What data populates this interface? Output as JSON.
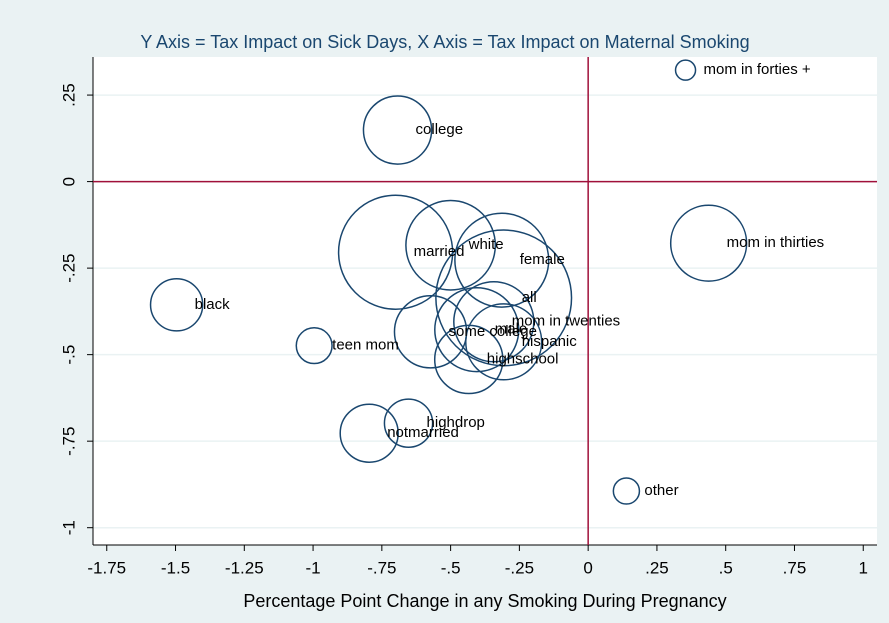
{
  "chart_data": {
    "type": "bubble",
    "title": "Y Axis = Tax Impact on Sick Days, X Axis = Tax Impact on Maternal Smoking",
    "xlabel": "Percentage Point Change in any Smoking During Pregnancy",
    "labels": [
      "mom in forties +",
      "college",
      "married",
      "white",
      "female",
      "mom in thirties",
      "black",
      "all",
      "mom in twenties",
      "some college",
      "male",
      "hispanic",
      "highschool",
      "teen mom",
      "highdrop",
      "notmarried",
      "other"
    ],
    "x": [
      0.354,
      -0.693,
      -0.7,
      -0.5,
      -0.314,
      0.438,
      -1.496,
      -0.307,
      -0.343,
      -0.573,
      -0.405,
      -0.307,
      -0.434,
      -0.996,
      -0.653,
      -0.796,
      0.139
    ],
    "values": [
      0.322,
      0.149,
      -0.204,
      -0.184,
      -0.227,
      -0.178,
      -0.356,
      -0.336,
      -0.405,
      -0.434,
      -0.428,
      -0.463,
      -0.514,
      -0.474,
      -0.698,
      -0.727,
      -0.894
    ],
    "sizes": [
      1,
      11.6,
      32.5,
      20,
      22,
      14.4,
      6.8,
      46,
      16,
      13,
      17.6,
      14.4,
      11.6,
      3.2,
      5.8,
      8.4,
      1.7
    ],
    "color": "#1a476f",
    "reference_color": "#a0103a",
    "xline": 0,
    "yline": 0,
    "xlim": [
      -1.8,
      1.05
    ],
    "ylim": [
      -1.05,
      0.36
    ],
    "xticks": [
      -1.75,
      -1.5,
      -1.25,
      -1,
      {
        "value": -0.75,
        "label": "-.75"
      },
      {
        "value": -0.5,
        "label": "-.5"
      },
      {
        "value": -0.25,
        "label": "-.25"
      },
      0,
      {
        "value": 0.25,
        "label": ".25"
      },
      {
        "value": 0.5,
        "label": ".5"
      },
      {
        "value": 0.75,
        "label": ".75"
      },
      1
    ],
    "yticks": [
      -1,
      {
        "value": -0.75,
        "label": "-.75"
      },
      {
        "value": -0.5,
        "label": "-.5"
      },
      {
        "value": -0.25,
        "label": "-.25"
      },
      0,
      {
        "value": 0.25,
        "label": ".25"
      }
    ],
    "grid": true
  }
}
